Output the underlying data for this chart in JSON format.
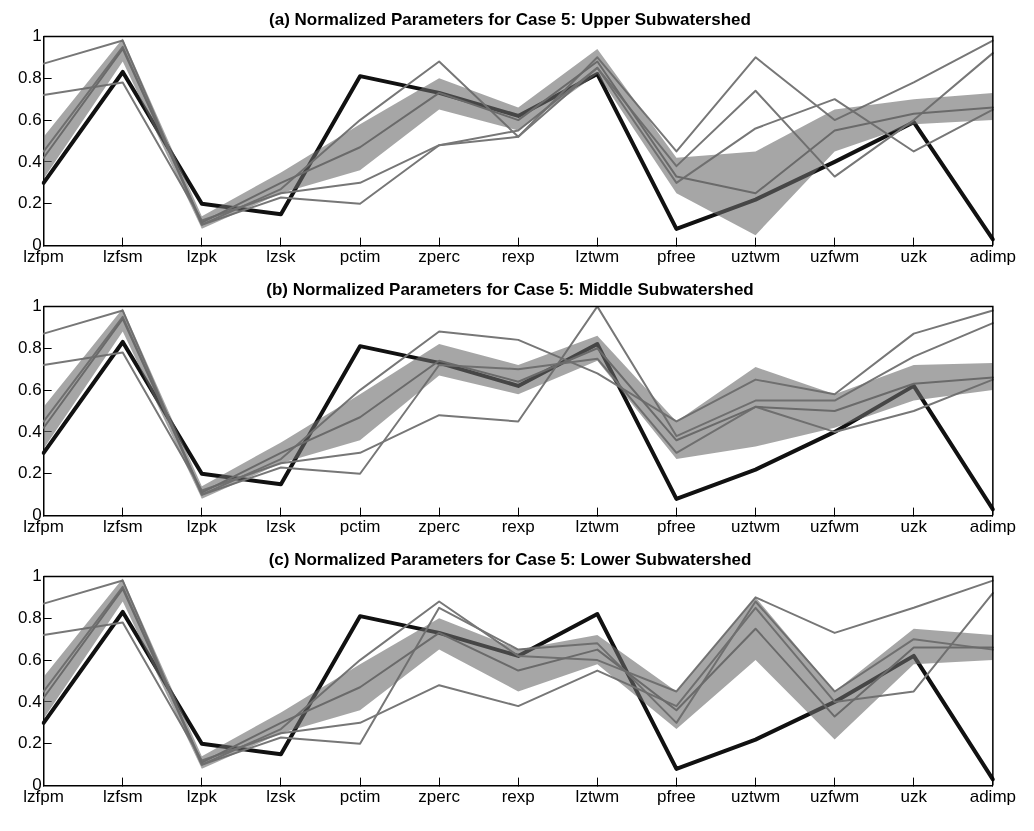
{
  "chart_data": [
    {
      "type": "line",
      "title": "(a) Normalized Parameters for Case 5: Upper Subwatershed",
      "categories": [
        "lzfpm",
        "lzfsm",
        "lzpk",
        "lzsk",
        "pctim",
        "zperc",
        "rexp",
        "lztwm",
        "pfree",
        "uztwm",
        "uzfwm",
        "uzk",
        "adimp"
      ],
      "ylim": [
        0,
        1
      ],
      "yticks": [
        0,
        0.2,
        0.4,
        0.6,
        0.8,
        1
      ],
      "grid": false,
      "legend": false,
      "marker": "none",
      "line_style": "solid",
      "series": [
        {
          "color": "#6a6a6a",
          "values": [
            0.42,
            0.94,
            0.11,
            0.3,
            0.47,
            0.73,
            0.6,
            0.88,
            0.33,
            0.25,
            0.55,
            0.63,
            0.66
          ],
          "lower": [
            0.32,
            0.88,
            0.08,
            0.25,
            0.36,
            0.65,
            0.55,
            0.82,
            0.25,
            0.05,
            0.45,
            0.58,
            0.6
          ],
          "upper": [
            0.52,
            0.99,
            0.14,
            0.35,
            0.58,
            0.8,
            0.66,
            0.94,
            0.42,
            0.45,
            0.65,
            0.7,
            0.73
          ]
        },
        {
          "color": "#777777",
          "values": [
            0.87,
            0.98,
            0.1,
            0.27,
            0.6,
            0.88,
            0.52,
            0.9,
            0.45,
            0.9,
            0.6,
            0.78,
            0.98
          ]
        },
        {
          "color": "#777777",
          "values": [
            0.72,
            0.78,
            0.12,
            0.25,
            0.3,
            0.48,
            0.52,
            0.85,
            0.38,
            0.74,
            0.33,
            0.6,
            0.92
          ]
        },
        {
          "color": "#777777",
          "values": [
            0.45,
            0.95,
            0.1,
            0.23,
            0.2,
            0.48,
            0.55,
            0.85,
            0.3,
            0.56,
            0.7,
            0.45,
            0.65
          ]
        },
        {
          "color": "#111111",
          "values": [
            0.3,
            0.83,
            0.2,
            0.15,
            0.81,
            0.73,
            0.62,
            0.82,
            0.08,
            0.22,
            0.4,
            0.59,
            0.03
          ]
        }
      ]
    },
    {
      "type": "line",
      "title": "(b) Normalized Parameters for Case 5: Middle Subwatershed",
      "categories": [
        "lzfpm",
        "lzfsm",
        "lzpk",
        "lzsk",
        "pctim",
        "zperc",
        "rexp",
        "lztwm",
        "pfree",
        "uztwm",
        "uzfwm",
        "uzk",
        "adimp"
      ],
      "ylim": [
        0,
        1
      ],
      "yticks": [
        0,
        0.2,
        0.4,
        0.6,
        0.8,
        1
      ],
      "grid": false,
      "legend": false,
      "marker": "none",
      "line_style": "solid",
      "series": [
        {
          "color": "#6a6a6a",
          "values": [
            0.42,
            0.94,
            0.11,
            0.3,
            0.47,
            0.74,
            0.64,
            0.8,
            0.36,
            0.52,
            0.5,
            0.63,
            0.66
          ],
          "lower": [
            0.32,
            0.88,
            0.08,
            0.25,
            0.36,
            0.67,
            0.58,
            0.74,
            0.27,
            0.33,
            0.42,
            0.55,
            0.6
          ],
          "upper": [
            0.52,
            0.99,
            0.14,
            0.35,
            0.58,
            0.82,
            0.72,
            0.86,
            0.45,
            0.71,
            0.58,
            0.72,
            0.73
          ]
        },
        {
          "color": "#777777",
          "values": [
            0.87,
            0.98,
            0.1,
            0.27,
            0.6,
            0.88,
            0.84,
            0.68,
            0.45,
            0.65,
            0.58,
            0.87,
            0.98
          ]
        },
        {
          "color": "#777777",
          "values": [
            0.72,
            0.78,
            0.12,
            0.25,
            0.3,
            0.48,
            0.45,
            1.0,
            0.38,
            0.55,
            0.55,
            0.76,
            0.92
          ]
        },
        {
          "color": "#777777",
          "values": [
            0.45,
            0.95,
            0.1,
            0.23,
            0.2,
            0.72,
            0.7,
            0.75,
            0.3,
            0.52,
            0.4,
            0.5,
            0.65
          ]
        },
        {
          "color": "#111111",
          "values": [
            0.3,
            0.83,
            0.2,
            0.15,
            0.81,
            0.73,
            0.62,
            0.82,
            0.08,
            0.22,
            0.4,
            0.62,
            0.03
          ]
        }
      ]
    },
    {
      "type": "line",
      "title": "(c) Normalized Parameters for Case 5: Lower Subwatershed",
      "categories": [
        "lzfpm",
        "lzfsm",
        "lzpk",
        "lzsk",
        "pctim",
        "zperc",
        "rexp",
        "lztwm",
        "pfree",
        "uztwm",
        "uzfwm",
        "uzk",
        "adimp"
      ],
      "ylim": [
        0,
        1
      ],
      "yticks": [
        0,
        0.2,
        0.4,
        0.6,
        0.8,
        1
      ],
      "grid": false,
      "legend": false,
      "marker": "none",
      "line_style": "solid",
      "series": [
        {
          "color": "#6a6a6a",
          "values": [
            0.42,
            0.94,
            0.11,
            0.3,
            0.47,
            0.73,
            0.55,
            0.65,
            0.36,
            0.75,
            0.33,
            0.66,
            0.66
          ],
          "lower": [
            0.32,
            0.88,
            0.08,
            0.25,
            0.36,
            0.65,
            0.45,
            0.58,
            0.27,
            0.6,
            0.22,
            0.58,
            0.6
          ],
          "upper": [
            0.52,
            0.99,
            0.14,
            0.35,
            0.58,
            0.8,
            0.65,
            0.72,
            0.45,
            0.9,
            0.45,
            0.75,
            0.72
          ]
        },
        {
          "color": "#777777",
          "values": [
            0.87,
            0.98,
            0.1,
            0.27,
            0.6,
            0.88,
            0.62,
            0.6,
            0.45,
            0.9,
            0.73,
            0.85,
            0.98
          ]
        },
        {
          "color": "#777777",
          "values": [
            0.72,
            0.78,
            0.12,
            0.25,
            0.3,
            0.48,
            0.38,
            0.55,
            0.38,
            0.85,
            0.4,
            0.45,
            0.92
          ]
        },
        {
          "color": "#777777",
          "values": [
            0.45,
            0.95,
            0.1,
            0.23,
            0.2,
            0.85,
            0.65,
            0.68,
            0.3,
            0.88,
            0.45,
            0.7,
            0.65
          ]
        },
        {
          "color": "#111111",
          "values": [
            0.3,
            0.83,
            0.2,
            0.15,
            0.81,
            0.73,
            0.62,
            0.82,
            0.08,
            0.22,
            0.4,
            0.62,
            0.03
          ]
        }
      ]
    }
  ]
}
